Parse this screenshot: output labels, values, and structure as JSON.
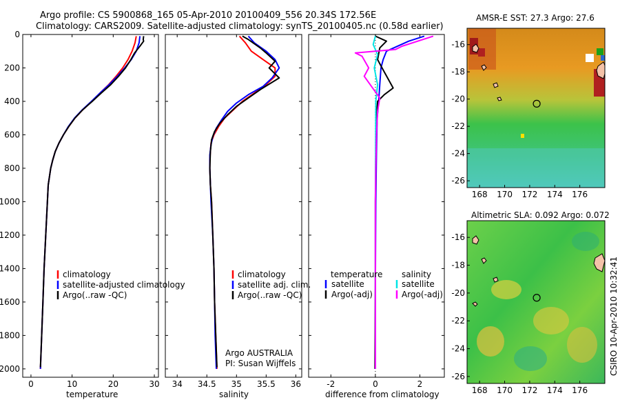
{
  "header": {
    "title_line1": "Argo profile: CS 5900868_165 05-Apr-2010 20100409_556 20.34S 172.56E",
    "title_line2": "Climatology: CARS2009. Satellite-adjusted climatology: synTS_20100405.nc (0.58d earlier)"
  },
  "side_label": "CSIRO 10-Apr-2010 10:32:41",
  "colors": {
    "climatology": "#ff0000",
    "satellite": "#0000ff",
    "argo": "#000000",
    "sat_sal": "#00e5e5",
    "argo_sal": "#ff00ff"
  },
  "chart_data": [
    {
      "type": "line",
      "name": "temperature-profile",
      "xlabel": "temperature",
      "xlim": [
        -2,
        31
      ],
      "ylim": [
        2050,
        0
      ],
      "x_ticks": [
        "0",
        "10",
        "20",
        "30"
      ],
      "y_ticks": [
        "0",
        "200",
        "400",
        "600",
        "800",
        "1000",
        "1200",
        "1400",
        "1600",
        "1800",
        "2000"
      ],
      "legend": [
        "climatology",
        "satellite-adjusted climatology",
        "Argo(..raw -QC)"
      ],
      "series": [
        {
          "name": "climatology",
          "color": "#ff0000",
          "points": [
            [
              25.6,
              10
            ],
            [
              25.3,
              50
            ],
            [
              24.6,
              100
            ],
            [
              23.6,
              150
            ],
            [
              22.3,
              200
            ],
            [
              20.7,
              250
            ],
            [
              18.9,
              300
            ],
            [
              16.8,
              350
            ],
            [
              14.8,
              400
            ],
            [
              12.6,
              450
            ],
            [
              10.7,
              500
            ],
            [
              9.2,
              550
            ],
            [
              7.9,
              600
            ],
            [
              6.8,
              650
            ],
            [
              5.9,
              700
            ],
            [
              5.3,
              750
            ],
            [
              4.8,
              800
            ],
            [
              4.5,
              850
            ],
            [
              4.2,
              900
            ],
            [
              4.0,
              1000
            ],
            [
              3.6,
              1200
            ],
            [
              3.2,
              1400
            ],
            [
              2.9,
              1600
            ],
            [
              2.6,
              1800
            ],
            [
              2.3,
              2000
            ]
          ]
        },
        {
          "name": "satellite",
          "color": "#0000ff",
          "points": [
            [
              26.5,
              10
            ],
            [
              26.3,
              50
            ],
            [
              25.6,
              100
            ],
            [
              24.4,
              150
            ],
            [
              22.8,
              200
            ],
            [
              21.0,
              250
            ],
            [
              19.0,
              300
            ],
            [
              16.8,
              350
            ],
            [
              14.7,
              400
            ],
            [
              12.5,
              450
            ],
            [
              10.6,
              500
            ],
            [
              9.1,
              550
            ],
            [
              7.9,
              600
            ],
            [
              6.8,
              650
            ],
            [
              5.9,
              700
            ],
            [
              5.3,
              750
            ],
            [
              4.8,
              800
            ],
            [
              4.5,
              850
            ],
            [
              4.2,
              900
            ],
            [
              4.0,
              1000
            ],
            [
              3.6,
              1200
            ],
            [
              3.2,
              1400
            ],
            [
              2.9,
              1600
            ],
            [
              2.6,
              1800
            ],
            [
              2.3,
              2000
            ]
          ]
        },
        {
          "name": "argo",
          "color": "#000000",
          "points": [
            [
              27.4,
              10
            ],
            [
              27.3,
              30
            ],
            [
              27.4,
              40
            ],
            [
              26.5,
              70
            ],
            [
              25.2,
              110
            ],
            [
              24.3,
              150
            ],
            [
              23.0,
              200
            ],
            [
              21.3,
              250
            ],
            [
              19.4,
              300
            ],
            [
              17.1,
              350
            ],
            [
              14.9,
              400
            ],
            [
              12.6,
              450
            ],
            [
              10.7,
              500
            ],
            [
              9.2,
              550
            ],
            [
              7.9,
              600
            ],
            [
              6.8,
              650
            ],
            [
              5.9,
              700
            ],
            [
              5.3,
              750
            ],
            [
              4.8,
              800
            ],
            [
              4.5,
              850
            ],
            [
              4.2,
              900
            ],
            [
              4.0,
              1000
            ],
            [
              3.6,
              1200
            ],
            [
              3.2,
              1400
            ],
            [
              2.9,
              1600
            ],
            [
              2.6,
              1800
            ],
            [
              2.3,
              1990
            ]
          ]
        }
      ]
    },
    {
      "type": "line",
      "name": "salinity-profile",
      "xlabel": "salinity",
      "xlim": [
        33.8,
        36.1
      ],
      "ylim": [
        2050,
        0
      ],
      "x_ticks": [
        "34",
        "34.5",
        "35",
        "35.5",
        "36"
      ],
      "legend": [
        "climatology",
        "satellite adj. clim.",
        "Argo(..raw -QC)"
      ],
      "annotation": [
        "Argo AUSTRALIA",
        "PI: Susan Wijffels"
      ],
      "series": [
        {
          "name": "climatology",
          "color": "#ff0000",
          "points": [
            [
              35.05,
              10
            ],
            [
              35.15,
              50
            ],
            [
              35.25,
              100
            ],
            [
              35.45,
              150
            ],
            [
              35.65,
              200
            ],
            [
              35.65,
              250
            ],
            [
              35.5,
              300
            ],
            [
              35.3,
              350
            ],
            [
              35.1,
              400
            ],
            [
              34.95,
              450
            ],
            [
              34.8,
              500
            ],
            [
              34.7,
              550
            ],
            [
              34.62,
              600
            ],
            [
              34.57,
              650
            ],
            [
              34.56,
              700
            ],
            [
              34.55,
              750
            ],
            [
              34.55,
              800
            ],
            [
              34.56,
              900
            ],
            [
              34.58,
              1000
            ],
            [
              34.6,
              1200
            ],
            [
              34.62,
              1400
            ],
            [
              34.63,
              1600
            ],
            [
              34.65,
              1800
            ],
            [
              34.67,
              2000
            ]
          ]
        },
        {
          "name": "satellite",
          "color": "#0000ff",
          "points": [
            [
              35.2,
              10
            ],
            [
              35.3,
              50
            ],
            [
              35.5,
              100
            ],
            [
              35.65,
              150
            ],
            [
              35.72,
              200
            ],
            [
              35.6,
              260
            ],
            [
              35.45,
              310
            ],
            [
              35.2,
              360
            ],
            [
              35.0,
              410
            ],
            [
              34.85,
              460
            ],
            [
              34.75,
              510
            ],
            [
              34.66,
              560
            ],
            [
              34.6,
              610
            ],
            [
              34.57,
              660
            ],
            [
              34.55,
              720
            ],
            [
              34.55,
              800
            ],
            [
              34.56,
              900
            ],
            [
              34.57,
              1000
            ],
            [
              34.6,
              1200
            ],
            [
              34.62,
              1400
            ],
            [
              34.63,
              1600
            ],
            [
              34.64,
              1800
            ],
            [
              34.66,
              2000
            ]
          ]
        },
        {
          "name": "argo",
          "color": "#000000",
          "points": [
            [
              35.1,
              10
            ],
            [
              35.2,
              30
            ],
            [
              35.4,
              80
            ],
            [
              35.5,
              110
            ],
            [
              35.65,
              160
            ],
            [
              35.55,
              200
            ],
            [
              35.72,
              260
            ],
            [
              35.4,
              330
            ],
            [
              35.2,
              380
            ],
            [
              35.0,
              430
            ],
            [
              34.85,
              480
            ],
            [
              34.72,
              530
            ],
            [
              34.63,
              580
            ],
            [
              34.58,
              630
            ],
            [
              34.56,
              700
            ],
            [
              34.55,
              800
            ],
            [
              34.56,
              900
            ],
            [
              34.58,
              1000
            ],
            [
              34.6,
              1200
            ],
            [
              34.62,
              1400
            ],
            [
              34.63,
              1600
            ],
            [
              34.65,
              1800
            ],
            [
              34.67,
              1990
            ]
          ]
        }
      ]
    },
    {
      "type": "line",
      "name": "difference-profile",
      "xlabel": "difference from climatology",
      "xlim": [
        -3,
        3.1
      ],
      "ylim": [
        2050,
        0
      ],
      "x_ticks": [
        "-2",
        "0",
        "2"
      ],
      "legend_left_title": "temperature",
      "legend_left": [
        "satellite",
        "Argo(-adj)"
      ],
      "legend_right_title": "salinity",
      "legend_right": [
        "satellite",
        "Argo(-adj)"
      ],
      "series": [
        {
          "name": "temperature-satellite",
          "color": "#0000ff",
          "points": [
            [
              2.2,
              10
            ],
            [
              1.5,
              40
            ],
            [
              0.5,
              100
            ],
            [
              0.35,
              150
            ],
            [
              0.25,
              200
            ],
            [
              0.2,
              300
            ],
            [
              0.15,
              400
            ],
            [
              0.08,
              500
            ],
            [
              0.05,
              700
            ],
            [
              0.02,
              1000
            ],
            [
              0.0,
              1500
            ],
            [
              0.0,
              2000
            ]
          ]
        },
        {
          "name": "temperature-argo",
          "color": "#000000",
          "points": [
            [
              0.0,
              10
            ],
            [
              0.5,
              40
            ],
            [
              0.2,
              80
            ],
            [
              0.1,
              150
            ],
            [
              0.3,
              200
            ],
            [
              0.8,
              320
            ],
            [
              0.4,
              360
            ],
            [
              0.1,
              400
            ],
            [
              0.05,
              500
            ],
            [
              0.02,
              700
            ],
            [
              0.0,
              1000
            ],
            [
              0.0,
              1500
            ],
            [
              -0.02,
              2000
            ]
          ]
        },
        {
          "name": "salinity-satellite",
          "color": "#00e5e5",
          "points": [
            [
              0.0,
              10
            ],
            [
              -0.1,
              60
            ],
            [
              0.1,
              120
            ],
            [
              -0.05,
              200
            ],
            [
              0.1,
              300
            ],
            [
              0.02,
              400
            ],
            [
              0.01,
              700
            ],
            [
              0.0,
              1000
            ],
            [
              0.0,
              2000
            ]
          ]
        },
        {
          "name": "salinity-argo",
          "color": "#ff00ff",
          "points": [
            [
              2.6,
              10
            ],
            [
              1.2,
              70
            ],
            [
              0.9,
              90
            ],
            [
              -0.9,
              110
            ],
            [
              -0.6,
              130
            ],
            [
              -0.3,
              200
            ],
            [
              -0.5,
              250
            ],
            [
              0.2,
              380
            ],
            [
              0.1,
              460
            ],
            [
              0.05,
              600
            ],
            [
              0.02,
              800
            ],
            [
              0.0,
              1000
            ],
            [
              0.0,
              2000
            ]
          ]
        }
      ]
    },
    {
      "type": "heatmap",
      "name": "sst-map",
      "title": "AMSR-E SST: 27.3 Argo: 27.6",
      "xlim": [
        167,
        178
      ],
      "ylim": [
        -26.5,
        -14.8
      ],
      "x_ticks": [
        "168",
        "170",
        "172",
        "174",
        "176"
      ],
      "y_ticks": [
        "-16",
        "-18",
        "-20",
        "-22",
        "-24",
        "-26"
      ],
      "marker": [
        172.56,
        -20.34
      ]
    },
    {
      "type": "heatmap",
      "name": "sla-map",
      "title": "Altimetric SLA: 0.092 Argo: 0.072",
      "xlim": [
        167,
        178
      ],
      "ylim": [
        -26.5,
        -14.8
      ],
      "x_ticks": [
        "168",
        "170",
        "172",
        "174",
        "176"
      ],
      "y_ticks": [
        "-16",
        "-18",
        "-20",
        "-22",
        "-24",
        "-26"
      ],
      "marker": [
        172.56,
        -20.34
      ]
    }
  ]
}
